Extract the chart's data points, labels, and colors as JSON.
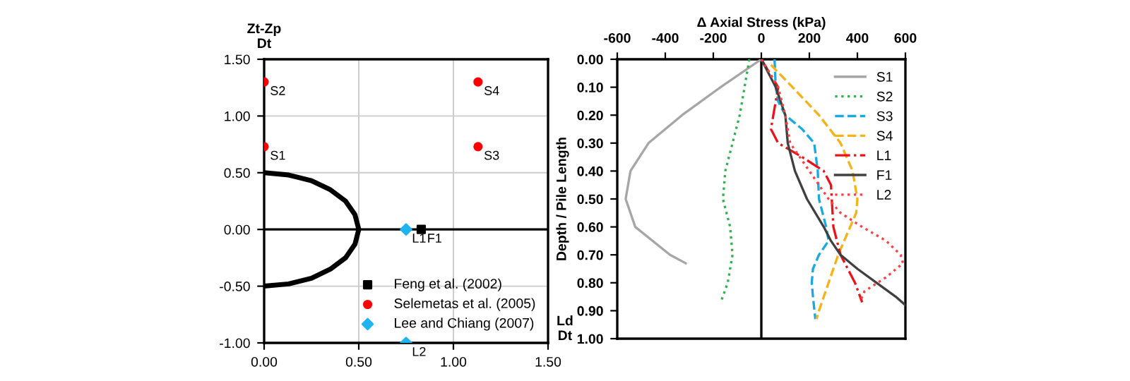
{
  "chart_data": [
    {
      "type": "scatter",
      "ylabel": "Zt-Zp\nDt",
      "xlabel": "Ld\nDt",
      "xlim": [
        0,
        1.5
      ],
      "xticks": [
        {
          "value": 0,
          "label": "0.00"
        },
        {
          "value": 0.5,
          "label": "0.50"
        },
        {
          "value": 1.0,
          "label": "1.00"
        },
        {
          "value": 1.5,
          "label": "1.50"
        }
      ],
      "ylim": [
        -1.0,
        1.5
      ],
      "yticks": [
        {
          "value": -1.0,
          "label": "-1.00"
        },
        {
          "value": -0.5,
          "label": "-0.50"
        },
        {
          "value": 0,
          "label": "0.00"
        },
        {
          "value": 0.5,
          "label": "0.50"
        },
        {
          "value": 1.0,
          "label": "1.00"
        },
        {
          "value": 1.5,
          "label": "1.50"
        }
      ],
      "grid": true,
      "legend": "bottom right",
      "ref_lines": [
        {
          "axis": "y",
          "value": 0,
          "color": "#000000"
        }
      ],
      "series": [
        {
          "type": "line",
          "color": "#000000",
          "x": [
            0,
            0.13,
            0.25,
            0.35,
            0.43,
            0.48,
            0.5,
            0.48,
            0.43,
            0.35,
            0.25,
            0.13,
            0
          ],
          "values": [
            -0.5,
            -0.48,
            -0.43,
            -0.35,
            -0.25,
            -0.13,
            0,
            0.13,
            0.25,
            0.35,
            0.43,
            0.48,
            0.5
          ]
        },
        {
          "name": "Feng et al. (2002)",
          "color": "#000000",
          "marker": "square",
          "x": [
            0.83
          ],
          "values": [
            0
          ]
        },
        {
          "name": "Selemetas et al. (2005)",
          "color": "#ff0000",
          "marker": "circle",
          "x": [
            0,
            0,
            1.13,
            1.13
          ],
          "values": [
            0.73,
            1.3,
            0.73,
            1.3
          ]
        },
        {
          "name": "Lee and Chiang (2007)",
          "color": "#1fb4f0",
          "marker": "diamond",
          "x": [
            0.75,
            0.75
          ],
          "values": [
            0,
            -1.0
          ]
        }
      ],
      "annotations": [
        {
          "text": "S1",
          "x": 0,
          "y": 0.73
        },
        {
          "text": "S2",
          "x": 0,
          "y": 1.3
        },
        {
          "text": "S3",
          "x": 1.13,
          "y": 0.73
        },
        {
          "text": "S4",
          "x": 1.13,
          "y": 1.3
        },
        {
          "text": "L1",
          "x": 0.75,
          "y": 0
        },
        {
          "text": "F1",
          "x": 0.83,
          "y": 0
        },
        {
          "text": "L2",
          "x": 0.75,
          "y": -1.0
        }
      ]
    },
    {
      "type": "line",
      "xlabel": "Δ Axial Stress (kPa)",
      "ylabel": "Depth / Pile Length",
      "xlim": [
        -600,
        600
      ],
      "xticks": [
        -600,
        -400,
        -200,
        0,
        200,
        400,
        600
      ],
      "ylim": [
        1.0,
        0.0
      ],
      "yticks": [
        {
          "value": 0,
          "label": "0.00"
        },
        {
          "value": 0.1,
          "label": "0.10"
        },
        {
          "value": 0.2,
          "label": "0.20"
        },
        {
          "value": 0.3,
          "label": "0.30"
        },
        {
          "value": 0.4,
          "label": "0.40"
        },
        {
          "value": 0.5,
          "label": "0.50"
        },
        {
          "value": 0.6,
          "label": "0.60"
        },
        {
          "value": 0.7,
          "label": "0.70"
        },
        {
          "value": 0.8,
          "label": "0.80"
        },
        {
          "value": 0.9,
          "label": "0.90"
        },
        {
          "value": 1.0,
          "label": "1.00"
        }
      ],
      "grid": false,
      "legend": "top right",
      "ref_lines": [
        {
          "axis": "x",
          "value": 0,
          "color": "#000000"
        }
      ],
      "series": [
        {
          "name": "S1",
          "color": "#a6a6a6",
          "line_style": "solid",
          "x": [
            0,
            -170,
            -330,
            -470,
            -545,
            -565,
            -525,
            -380,
            -315
          ],
          "values": [
            0,
            0.1,
            0.2,
            0.3,
            0.4,
            0.5,
            0.6,
            0.7,
            0.73
          ]
        },
        {
          "name": "S2",
          "color": "#33b050",
          "line_style": "dotted",
          "x": [
            -50,
            -70,
            -90,
            -120,
            -150,
            -160,
            -130,
            -120,
            -140,
            -165
          ],
          "values": [
            0,
            0.1,
            0.2,
            0.3,
            0.4,
            0.5,
            0.6,
            0.7,
            0.8,
            0.86
          ]
        },
        {
          "name": "S3",
          "color": "#1aa8e0",
          "line_style": "dashed",
          "x": [
            55,
            60,
            70,
            100,
            170,
            220,
            235,
            240,
            270,
            280,
            240,
            215,
            210,
            215,
            225
          ],
          "values": [
            0,
            0.1,
            0.15,
            0.2,
            0.25,
            0.3,
            0.4,
            0.5,
            0.6,
            0.65,
            0.7,
            0.75,
            0.8,
            0.85,
            0.93
          ]
        },
        {
          "name": "S4",
          "color": "#f5b21b",
          "line_style": "dashed",
          "x": [
            40,
            130,
            240,
            330,
            380,
            400,
            395,
            370,
            320,
            280,
            240,
            230
          ],
          "values": [
            0.02,
            0.1,
            0.2,
            0.3,
            0.4,
            0.5,
            0.55,
            0.6,
            0.7,
            0.8,
            0.9,
            0.93
          ]
        },
        {
          "name": "L1",
          "color": "#e8141b",
          "line_style": "dashdot",
          "x": [
            0,
            70,
            50,
            40,
            70,
            170,
            260,
            290,
            300,
            330,
            390,
            420
          ],
          "values": [
            0,
            0.1,
            0.2,
            0.25,
            0.3,
            0.35,
            0.4,
            0.45,
            0.6,
            0.7,
            0.8,
            0.87
          ]
        },
        {
          "name": "F1",
          "color": "#404040",
          "line_style": "solid",
          "x": [
            0,
            60,
            100,
            110,
            140,
            190,
            260,
            290,
            330,
            400,
            480,
            560,
            600
          ],
          "values": [
            0,
            0.1,
            0.2,
            0.3,
            0.4,
            0.5,
            0.6,
            0.65,
            0.7,
            0.75,
            0.8,
            0.85,
            0.88
          ]
        },
        {
          "name": "L2",
          "color": "#ff4040",
          "line_style": "dotted",
          "x": [
            0,
            70,
            100,
            120,
            200,
            280,
            330,
            420,
            520,
            580,
            590,
            520,
            430,
            410
          ],
          "values": [
            0,
            0.1,
            0.2,
            0.3,
            0.4,
            0.5,
            0.55,
            0.6,
            0.65,
            0.7,
            0.73,
            0.78,
            0.83,
            0.87
          ]
        }
      ]
    }
  ]
}
